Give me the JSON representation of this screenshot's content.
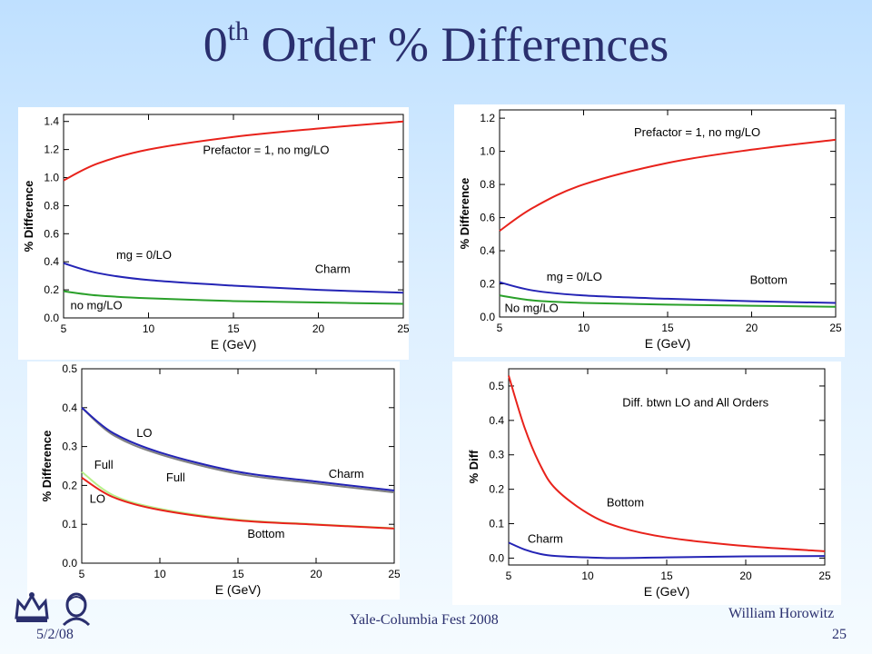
{
  "slide": {
    "title_main": "0",
    "title_sup": "th",
    "title_rest": " Order % Differences",
    "footer": {
      "date": "5/2/08",
      "event": "Yale-Columbia Fest 2008",
      "author": "William Horowitz",
      "page": "25"
    }
  },
  "chart_data": [
    {
      "type": "line",
      "xlabel": "E (GeV)",
      "ylabel": "% Difference",
      "xlim": [
        5,
        25
      ],
      "ylim": [
        0,
        1.45
      ],
      "xticks": [
        5,
        10,
        15,
        20,
        25
      ],
      "xtick_labels": [
        "5",
        "10",
        "15",
        "20",
        "25"
      ],
      "yticks": [
        0,
        0.2,
        0.4,
        0.6,
        0.8,
        1.0,
        1.2,
        1.4
      ],
      "ytick_labels": [
        "0.0",
        "0.2",
        "0.4",
        "0.6",
        "0.8",
        "1.0",
        "1.2",
        "1.4"
      ],
      "series": [
        {
          "color": "#e8221b",
          "x": [
            5,
            7,
            10,
            15,
            20,
            25
          ],
          "y": [
            0.98,
            1.1,
            1.2,
            1.29,
            1.35,
            1.4
          ]
        },
        {
          "color": "#2424b5",
          "x": [
            5,
            7,
            10,
            15,
            20,
            25
          ],
          "y": [
            0.39,
            0.32,
            0.27,
            0.23,
            0.2,
            0.18
          ]
        },
        {
          "color": "#2aa02a",
          "x": [
            5,
            7,
            10,
            15,
            20,
            25
          ],
          "y": [
            0.19,
            0.16,
            0.14,
            0.12,
            0.11,
            0.1
          ]
        }
      ],
      "annotations": [
        {
          "text": "Prefactor = 1, no mg/LO",
          "x": 13.2,
          "y": 1.17
        },
        {
          "text": "mg = 0/LO",
          "x": 8.1,
          "y": 0.42
        },
        {
          "text": "Charm",
          "x": 19.8,
          "y": 0.32
        },
        {
          "text": "no mg/LO",
          "x": 5.4,
          "y": 0.06
        }
      ]
    },
    {
      "type": "line",
      "xlabel": "E (GeV)",
      "ylabel": "% Difference",
      "xlim": [
        5,
        25
      ],
      "ylim": [
        0,
        1.25
      ],
      "xticks": [
        5,
        10,
        15,
        20,
        25
      ],
      "xtick_labels": [
        "5",
        "10",
        "15",
        "20",
        "25"
      ],
      "yticks": [
        0,
        0.2,
        0.4,
        0.6,
        0.8,
        1.0,
        1.2
      ],
      "ytick_labels": [
        "0.0",
        "0.2",
        "0.4",
        "0.6",
        "0.8",
        "1.0",
        "1.2"
      ],
      "series": [
        {
          "color": "#e8221b",
          "x": [
            5,
            7,
            10,
            15,
            20,
            25
          ],
          "y": [
            0.52,
            0.66,
            0.8,
            0.93,
            1.01,
            1.07
          ]
        },
        {
          "color": "#2424b5",
          "x": [
            5,
            7,
            10,
            15,
            20,
            25
          ],
          "y": [
            0.21,
            0.16,
            0.13,
            0.11,
            0.095,
            0.085
          ]
        },
        {
          "color": "#2aa02a",
          "x": [
            5,
            7,
            10,
            15,
            20,
            25
          ],
          "y": [
            0.13,
            0.1,
            0.085,
            0.075,
            0.068,
            0.062
          ]
        }
      ],
      "annotations": [
        {
          "text": "Prefactor = 1, no mg/LO",
          "x": 13.0,
          "y": 1.09
        },
        {
          "text": "mg = 0/LO",
          "x": 7.8,
          "y": 0.22
        },
        {
          "text": "Bottom",
          "x": 19.9,
          "y": 0.2
        },
        {
          "text": "No mg/LO",
          "x": 5.3,
          "y": 0.03
        }
      ]
    },
    {
      "type": "line",
      "xlabel": "E (GeV)",
      "ylabel": "% Difference",
      "xlim": [
        5,
        25
      ],
      "ylim": [
        0,
        0.5
      ],
      "xticks": [
        5,
        10,
        15,
        20,
        25
      ],
      "xtick_labels": [
        "5",
        "10",
        "15",
        "20",
        "25"
      ],
      "yticks": [
        0,
        0.1,
        0.2,
        0.3,
        0.4,
        0.5
      ],
      "ytick_labels": [
        "0.0",
        "0.1",
        "0.2",
        "0.3",
        "0.4",
        "0.5"
      ],
      "series": [
        {
          "color": "#808080",
          "x": [
            5,
            7,
            10,
            15,
            20,
            25
          ],
          "y": [
            0.4,
            0.33,
            0.28,
            0.23,
            0.205,
            0.182
          ]
        },
        {
          "color": "#2424b5",
          "x": [
            5,
            7,
            10,
            15,
            20,
            25
          ],
          "y": [
            0.4,
            0.335,
            0.285,
            0.235,
            0.21,
            0.187
          ]
        },
        {
          "color": "#b8f08a",
          "x": [
            5,
            7,
            10,
            15,
            20,
            25
          ],
          "y": [
            0.235,
            0.175,
            0.14,
            0.112,
            0.1,
            0.09
          ]
        },
        {
          "color": "#e8221b",
          "x": [
            5,
            7,
            10,
            15,
            20,
            25
          ],
          "y": [
            0.22,
            0.17,
            0.137,
            0.11,
            0.099,
            0.089
          ]
        }
      ],
      "annotations": [
        {
          "text": "LO",
          "x": 8.5,
          "y": 0.325
        },
        {
          "text": "Full",
          "x": 10.4,
          "y": 0.21
        },
        {
          "text": "Charm",
          "x": 20.8,
          "y": 0.22
        },
        {
          "text": "Full",
          "x": 5.8,
          "y": 0.243
        },
        {
          "text": "LO",
          "x": 5.5,
          "y": 0.155
        },
        {
          "text": "Bottom",
          "x": 15.6,
          "y": 0.065
        }
      ]
    },
    {
      "type": "line",
      "xlabel": "E (GeV)",
      "ylabel": "% Diff",
      "xlim": [
        5,
        25
      ],
      "ylim": [
        -0.02,
        0.55
      ],
      "xticks": [
        5,
        10,
        15,
        20,
        25
      ],
      "xtick_labels": [
        "5",
        "10",
        "15",
        "20",
        "25"
      ],
      "yticks": [
        0,
        0.1,
        0.2,
        0.3,
        0.4,
        0.5
      ],
      "ytick_labels": [
        "0.0",
        "0.1",
        "0.2",
        "0.3",
        "0.4",
        "0.5"
      ],
      "series": [
        {
          "color": "#e8221b",
          "x": [
            5,
            6,
            7,
            8,
            10,
            12,
            15,
            20,
            25
          ],
          "y": [
            0.53,
            0.38,
            0.27,
            0.2,
            0.13,
            0.09,
            0.06,
            0.035,
            0.02
          ]
        },
        {
          "color": "#2424b5",
          "x": [
            5,
            6,
            7,
            8,
            10,
            12,
            15,
            20,
            25
          ],
          "y": [
            0.045,
            0.025,
            0.012,
            0.006,
            0.002,
            0.0,
            0.002,
            0.005,
            0.006
          ]
        }
      ],
      "annotations": [
        {
          "text": "Diff. btwn LO and All Orders",
          "x": 12.2,
          "y": 0.44
        },
        {
          "text": "Bottom",
          "x": 11.2,
          "y": 0.15
        },
        {
          "text": "Charm",
          "x": 6.2,
          "y": 0.045
        }
      ]
    }
  ]
}
